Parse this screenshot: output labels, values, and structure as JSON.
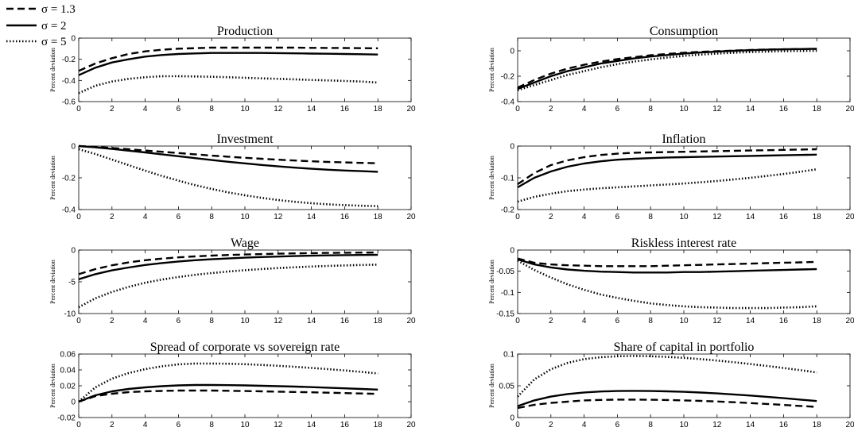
{
  "legend": {
    "entries": [
      {
        "label": "σ = 1.3",
        "style": "dashed"
      },
      {
        "label": "σ = 2",
        "style": "solid"
      },
      {
        "label": "σ = 5",
        "style": "dotted"
      }
    ]
  },
  "chart_data": [
    {
      "type": "line",
      "title": "Production",
      "ylabel": "Percent deviation",
      "xlim": [
        0,
        20
      ],
      "ylim": [
        -0.6,
        0
      ],
      "xticks": [
        0,
        2,
        4,
        6,
        8,
        10,
        12,
        14,
        16,
        18,
        20
      ],
      "yticks": [
        -0.6,
        -0.4,
        -0.2,
        0
      ],
      "ytick_labels": [
        "-0.6",
        "-0.4",
        "-0.2",
        "0"
      ],
      "x": [
        0,
        1,
        2,
        3,
        4,
        5,
        6,
        7,
        8,
        9,
        10,
        11,
        12,
        13,
        14,
        15,
        16,
        17,
        18
      ],
      "series": [
        {
          "style": "dashed",
          "values": [
            -0.31,
            -0.24,
            -0.19,
            -0.15,
            -0.125,
            -0.11,
            -0.1,
            -0.095,
            -0.09,
            -0.09,
            -0.09,
            -0.09,
            -0.09,
            -0.09,
            -0.092,
            -0.093,
            -0.094,
            -0.095,
            -0.096
          ]
        },
        {
          "style": "solid",
          "values": [
            -0.35,
            -0.28,
            -0.23,
            -0.2,
            -0.175,
            -0.16,
            -0.15,
            -0.145,
            -0.14,
            -0.14,
            -0.14,
            -0.14,
            -0.142,
            -0.144,
            -0.146,
            -0.148,
            -0.15,
            -0.152,
            -0.155
          ]
        },
        {
          "style": "dotted",
          "values": [
            -0.52,
            -0.45,
            -0.41,
            -0.385,
            -0.37,
            -0.36,
            -0.36,
            -0.362,
            -0.365,
            -0.37,
            -0.375,
            -0.38,
            -0.385,
            -0.39,
            -0.395,
            -0.4,
            -0.405,
            -0.41,
            -0.42
          ]
        }
      ]
    },
    {
      "type": "line",
      "title": "Consumption",
      "ylabel": "Percent deviation",
      "xlim": [
        0,
        20
      ],
      "ylim": [
        -0.4,
        0.1
      ],
      "xticks": [
        0,
        2,
        4,
        6,
        8,
        10,
        12,
        14,
        16,
        18,
        20
      ],
      "yticks": [
        -0.4,
        -0.2,
        0
      ],
      "ytick_labels": [
        "-0.4",
        "-0.2",
        "0"
      ],
      "x": [
        0,
        1,
        2,
        3,
        4,
        5,
        6,
        7,
        8,
        9,
        10,
        11,
        12,
        13,
        14,
        15,
        16,
        17,
        18
      ],
      "series": [
        {
          "style": "dashed",
          "values": [
            -0.29,
            -0.23,
            -0.18,
            -0.14,
            -0.11,
            -0.085,
            -0.065,
            -0.05,
            -0.035,
            -0.025,
            -0.015,
            -0.008,
            -0.003,
            0.002,
            0.006,
            0.01,
            0.012,
            0.014,
            0.015
          ]
        },
        {
          "style": "solid",
          "values": [
            -0.3,
            -0.25,
            -0.2,
            -0.16,
            -0.13,
            -0.1,
            -0.08,
            -0.06,
            -0.045,
            -0.033,
            -0.022,
            -0.013,
            -0.006,
            0,
            0.005,
            0.009,
            0.012,
            0.014,
            0.016
          ]
        },
        {
          "style": "dotted",
          "values": [
            -0.31,
            -0.27,
            -0.23,
            -0.19,
            -0.16,
            -0.13,
            -0.105,
            -0.085,
            -0.068,
            -0.053,
            -0.04,
            -0.03,
            -0.022,
            -0.015,
            -0.01,
            -0.006,
            -0.003,
            -0.001,
            0
          ]
        }
      ]
    },
    {
      "type": "line",
      "title": "Investment",
      "ylabel": "Percent deviation",
      "xlim": [
        0,
        20
      ],
      "ylim": [
        -0.4,
        0
      ],
      "xticks": [
        0,
        2,
        4,
        6,
        8,
        10,
        12,
        14,
        16,
        18,
        20
      ],
      "yticks": [
        -0.4,
        -0.2,
        0
      ],
      "ytick_labels": [
        "-0.4",
        "-0.2",
        "0"
      ],
      "x": [
        0,
        1,
        2,
        3,
        4,
        5,
        6,
        7,
        8,
        9,
        10,
        11,
        12,
        13,
        14,
        15,
        16,
        17,
        18
      ],
      "series": [
        {
          "style": "dashed",
          "values": [
            0,
            -0.005,
            -0.012,
            -0.02,
            -0.028,
            -0.036,
            -0.044,
            -0.052,
            -0.06,
            -0.067,
            -0.074,
            -0.08,
            -0.086,
            -0.091,
            -0.096,
            -0.1,
            -0.103,
            -0.106,
            -0.108
          ]
        },
        {
          "style": "solid",
          "values": [
            0,
            -0.008,
            -0.018,
            -0.029,
            -0.04,
            -0.052,
            -0.064,
            -0.076,
            -0.088,
            -0.099,
            -0.109,
            -0.119,
            -0.128,
            -0.136,
            -0.143,
            -0.149,
            -0.154,
            -0.158,
            -0.162
          ]
        },
        {
          "style": "dotted",
          "values": [
            -0.02,
            -0.05,
            -0.085,
            -0.12,
            -0.155,
            -0.188,
            -0.218,
            -0.246,
            -0.27,
            -0.292,
            -0.31,
            -0.326,
            -0.34,
            -0.351,
            -0.36,
            -0.367,
            -0.372,
            -0.376,
            -0.378
          ]
        }
      ]
    },
    {
      "type": "line",
      "title": "Inflation",
      "ylabel": "Percent deviation",
      "xlim": [
        0,
        20
      ],
      "ylim": [
        -0.2,
        0
      ],
      "xticks": [
        0,
        2,
        4,
        6,
        8,
        10,
        12,
        14,
        16,
        18,
        20
      ],
      "yticks": [
        -0.2,
        -0.1,
        0
      ],
      "ytick_labels": [
        "-0.2",
        "-0.1",
        "0"
      ],
      "x": [
        0,
        1,
        2,
        3,
        4,
        5,
        6,
        7,
        8,
        9,
        10,
        11,
        12,
        13,
        14,
        15,
        16,
        17,
        18
      ],
      "series": [
        {
          "style": "dashed",
          "values": [
            -0.12,
            -0.085,
            -0.06,
            -0.045,
            -0.035,
            -0.028,
            -0.024,
            -0.021,
            -0.02,
            -0.019,
            -0.018,
            -0.017,
            -0.016,
            -0.015,
            -0.014,
            -0.013,
            -0.012,
            -0.011,
            -0.01
          ]
        },
        {
          "style": "solid",
          "values": [
            -0.13,
            -0.1,
            -0.08,
            -0.065,
            -0.055,
            -0.048,
            -0.043,
            -0.04,
            -0.038,
            -0.036,
            -0.035,
            -0.034,
            -0.033,
            -0.032,
            -0.031,
            -0.03,
            -0.029,
            -0.028,
            -0.027
          ]
        },
        {
          "style": "dotted",
          "values": [
            -0.175,
            -0.16,
            -0.15,
            -0.142,
            -0.137,
            -0.133,
            -0.13,
            -0.127,
            -0.124,
            -0.121,
            -0.118,
            -0.114,
            -0.11,
            -0.105,
            -0.1,
            -0.094,
            -0.088,
            -0.081,
            -0.073
          ]
        }
      ]
    },
    {
      "type": "line",
      "title": "Wage",
      "ylabel": "Percent deviation",
      "xlim": [
        0,
        20
      ],
      "ylim": [
        -10,
        0
      ],
      "xticks": [
        0,
        2,
        4,
        6,
        8,
        10,
        12,
        14,
        16,
        18,
        20
      ],
      "yticks": [
        -10,
        -5,
        0
      ],
      "ytick_labels": [
        "-10",
        "-5",
        "0"
      ],
      "x": [
        0,
        1,
        2,
        3,
        4,
        5,
        6,
        7,
        8,
        9,
        10,
        11,
        12,
        13,
        14,
        15,
        16,
        17,
        18
      ],
      "series": [
        {
          "style": "dashed",
          "values": [
            -3.8,
            -3.0,
            -2.4,
            -1.95,
            -1.6,
            -1.35,
            -1.15,
            -1.0,
            -0.88,
            -0.78,
            -0.7,
            -0.64,
            -0.58,
            -0.53,
            -0.49,
            -0.45,
            -0.42,
            -0.4,
            -0.38
          ]
        },
        {
          "style": "solid",
          "values": [
            -4.6,
            -3.8,
            -3.2,
            -2.75,
            -2.35,
            -2.05,
            -1.8,
            -1.6,
            -1.45,
            -1.32,
            -1.2,
            -1.1,
            -1.02,
            -0.95,
            -0.89,
            -0.84,
            -0.8,
            -0.77,
            -0.75
          ]
        },
        {
          "style": "dotted",
          "values": [
            -9.0,
            -7.6,
            -6.6,
            -5.8,
            -5.15,
            -4.65,
            -4.25,
            -3.9,
            -3.62,
            -3.38,
            -3.17,
            -2.99,
            -2.84,
            -2.71,
            -2.6,
            -2.5,
            -2.42,
            -2.35,
            -2.3
          ]
        }
      ]
    },
    {
      "type": "line",
      "title": "Riskless interest rate",
      "ylabel": "Percent deviation",
      "xlim": [
        0,
        20
      ],
      "ylim": [
        -0.15,
        0
      ],
      "xticks": [
        0,
        2,
        4,
        6,
        8,
        10,
        12,
        14,
        16,
        18,
        20
      ],
      "yticks": [
        -0.15,
        -0.1,
        -0.05,
        0
      ],
      "ytick_labels": [
        "-0.15",
        "-0.1",
        "-0.05",
        "0"
      ],
      "x": [
        0,
        1,
        2,
        3,
        4,
        5,
        6,
        7,
        8,
        9,
        10,
        11,
        12,
        13,
        14,
        15,
        16,
        17,
        18
      ],
      "series": [
        {
          "style": "dashed",
          "values": [
            -0.02,
            -0.03,
            -0.034,
            -0.036,
            -0.037,
            -0.038,
            -0.038,
            -0.038,
            -0.038,
            -0.037,
            -0.036,
            -0.035,
            -0.034,
            -0.033,
            -0.032,
            -0.031,
            -0.03,
            -0.029,
            -0.028
          ]
        },
        {
          "style": "solid",
          "values": [
            -0.022,
            -0.034,
            -0.041,
            -0.046,
            -0.049,
            -0.051,
            -0.052,
            -0.053,
            -0.053,
            -0.053,
            -0.052,
            -0.052,
            -0.051,
            -0.05,
            -0.049,
            -0.048,
            -0.047,
            -0.046,
            -0.045
          ]
        },
        {
          "style": "dotted",
          "values": [
            -0.025,
            -0.047,
            -0.065,
            -0.081,
            -0.094,
            -0.105,
            -0.113,
            -0.12,
            -0.126,
            -0.13,
            -0.133,
            -0.135,
            -0.136,
            -0.137,
            -0.137,
            -0.137,
            -0.136,
            -0.135,
            -0.133
          ]
        }
      ]
    },
    {
      "type": "line",
      "title": "Spread of corporate vs sovereign rate",
      "ylabel": "Percent deviation",
      "xlim": [
        0,
        20
      ],
      "ylim": [
        -0.02,
        0.06
      ],
      "xticks": [
        0,
        2,
        4,
        6,
        8,
        10,
        12,
        14,
        16,
        18,
        20
      ],
      "yticks": [
        -0.02,
        0,
        0.02,
        0.04,
        0.06
      ],
      "ytick_labels": [
        "-0.02",
        "0",
        "0.02",
        "0.04",
        "0.06"
      ],
      "x": [
        0,
        1,
        2,
        3,
        4,
        5,
        6,
        7,
        8,
        9,
        10,
        11,
        12,
        13,
        14,
        15,
        16,
        17,
        18
      ],
      "series": [
        {
          "style": "dashed",
          "values": [
            0,
            0.007,
            0.01,
            0.012,
            0.013,
            0.0135,
            0.014,
            0.014,
            0.014,
            0.0137,
            0.0134,
            0.013,
            0.0126,
            0.0122,
            0.0118,
            0.0113,
            0.0108,
            0.0103,
            0.0098
          ]
        },
        {
          "style": "solid",
          "values": [
            0,
            0.008,
            0.013,
            0.016,
            0.018,
            0.0195,
            0.0205,
            0.021,
            0.021,
            0.0208,
            0.0205,
            0.02,
            0.0195,
            0.019,
            0.0183,
            0.0176,
            0.0168,
            0.016,
            0.0152
          ]
        },
        {
          "style": "dotted",
          "values": [
            0,
            0.018,
            0.029,
            0.036,
            0.041,
            0.0445,
            0.047,
            0.048,
            0.048,
            0.0478,
            0.0472,
            0.0463,
            0.0452,
            0.0439,
            0.0425,
            0.041,
            0.0393,
            0.0375,
            0.0355
          ]
        }
      ]
    },
    {
      "type": "line",
      "title": "Share of capital in portfolio",
      "ylabel": "Percent deviation",
      "xlim": [
        0,
        20
      ],
      "ylim": [
        0,
        0.1
      ],
      "xticks": [
        0,
        2,
        4,
        6,
        8,
        10,
        12,
        14,
        16,
        18,
        20
      ],
      "yticks": [
        0,
        0.05,
        0.1
      ],
      "ytick_labels": [
        "0",
        "0.05",
        "0.1"
      ],
      "x": [
        0,
        1,
        2,
        3,
        4,
        5,
        6,
        7,
        8,
        9,
        10,
        11,
        12,
        13,
        14,
        15,
        16,
        17,
        18
      ],
      "series": [
        {
          "style": "dashed",
          "values": [
            0.015,
            0.02,
            0.023,
            0.025,
            0.027,
            0.0278,
            0.0282,
            0.0282,
            0.028,
            0.0276,
            0.027,
            0.0262,
            0.0252,
            0.0241,
            0.0228,
            0.0214,
            0.0199,
            0.0183,
            0.0167
          ]
        },
        {
          "style": "solid",
          "values": [
            0.018,
            0.027,
            0.033,
            0.037,
            0.0395,
            0.041,
            0.0418,
            0.042,
            0.0418,
            0.0413,
            0.0405,
            0.0394,
            0.038,
            0.0364,
            0.0346,
            0.0326,
            0.0305,
            0.0283,
            0.026
          ]
        },
        {
          "style": "dotted",
          "values": [
            0.033,
            0.06,
            0.076,
            0.086,
            0.092,
            0.095,
            0.0965,
            0.097,
            0.0965,
            0.0955,
            0.094,
            0.092,
            0.0897,
            0.0871,
            0.0842,
            0.0812,
            0.078,
            0.0746,
            0.071
          ]
        }
      ]
    }
  ]
}
